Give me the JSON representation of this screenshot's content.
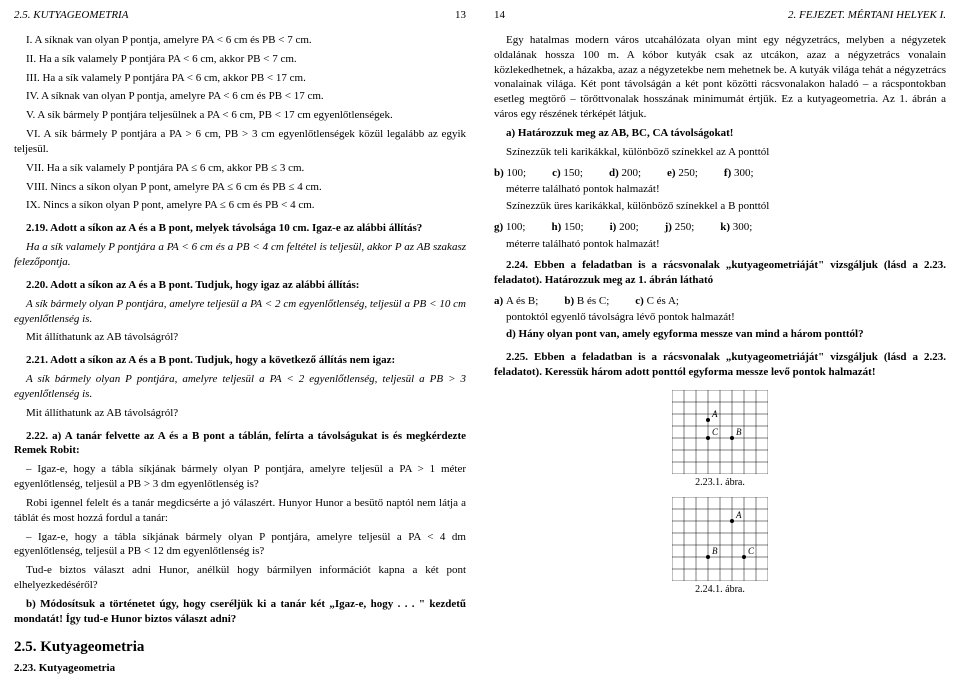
{
  "left": {
    "header": {
      "section": "2.5. KUTYAGEOMETRIA",
      "page": "13"
    },
    "p_intro_items": [
      "I. A síknak van olyan P pontja, amelyre PA < 6 cm és PB < 7 cm.",
      "II. Ha a sík valamely P pontjára PA < 6 cm, akkor PB < 7 cm.",
      "III. Ha a sík valamely P pontjára PA < 6 cm, akkor PB < 17 cm.",
      "IV. A síknak van olyan P pontja, amelyre PA < 6 cm és PB < 17 cm.",
      "V. A sík bármely P pontjára teljesülnek a PA < 6 cm, PB < 17 cm egyenlőtlenségek.",
      "VI. A sík bármely P pontjára a PA > 6 cm, PB > 3 cm egyenlőtlenségek közül legalább az egyik teljesül.",
      "VII. Ha a sík valamely P pontjára PA ≤ 6 cm, akkor PB ≤ 3 cm.",
      "VIII. Nincs a síkon olyan P pont, amelyre PA ≤ 6 cm és PB ≤ 4 cm.",
      "IX. Nincs a síkon olyan P pont, amelyre PA ≤ 6 cm és PB < 4 cm."
    ],
    "ex219_a": "2.19.  Adott a síkon az A és a B pont, melyek távolsága 10 cm. Igaz-e az alábbi állítás?",
    "ex219_b": "Ha a sík valamely P pontjára a PA < 6 cm és a PB < 4 cm feltétel is teljesül, akkor P az AB szakasz felezőpontja.",
    "ex220_a": "2.20.  Adott a síkon az A és a B pont. Tudjuk, hogy igaz az alábbi állítás:",
    "ex220_b": "A sík bármely olyan P pontjára, amelyre teljesül a PA < 2 cm egyenlőtlenség, teljesül a PB < 10 cm egyenlőtlenség is.",
    "ex220_c": "Mit állíthatunk az AB távolságról?",
    "ex221_a": "2.21.  Adott a síkon az A és a B pont. Tudjuk, hogy a következő állítás nem igaz:",
    "ex221_b": "A sík bármely olyan P pontjára, amelyre teljesül a PA < 2 egyenlőtlenség, teljesül a PB > 3 egyenlőtlenség is.",
    "ex221_c": "Mit állíthatunk az AB távolságról?",
    "ex222_lead": "2.22. a) A tanár felvette az A és a B pont a táblán, felírta a távolságukat is és megkérdezte Remek Robit:",
    "ex222_q1": "– Igaz-e, hogy a tábla síkjának bármely olyan P pontjára, amelyre teljesül a PA > 1 méter egyenlőtlenség, teljesül a PB > 3 dm egyenlőtlenség is?",
    "ex222_mid": "Robi igennel felelt és a tanár megdicsérte a jó válaszért. Hunyor Hunor a besütő naptól nem látja a táblát és most hozzá fordul a tanár:",
    "ex222_q2": "– Igaz-e, hogy a tábla síkjának bármely olyan P pontjára, amelyre teljesül a PA < 4 dm egyenlőtlenség, teljesül a PB < 12 dm egyenlőtlenség is?",
    "ex222_end": "Tud-e biztos választ adni Hunor, anélkül hogy bármilyen információt kapna a két pont elhelyezkedéséről?",
    "ex222_b": "b) Módosítsuk a történetet úgy, hogy cseréljük ki a tanár két „Igaz-e, hogy . . . \" kezdetű mondatát! Így tud-e Hunor biztos választ adni?",
    "section_title": "2.5. Kutyageometria",
    "ex223_label": "2.23.  Kutyageometria"
  },
  "right": {
    "header": {
      "page": "14",
      "section": "2. FEJEZET. MÉRTANI HELYEK I."
    },
    "p1": "Egy hatalmas modern város utcahálózata olyan mint egy négyzetrács, melyben a négyzetek oldalának hossza 100 m. A kóbor kutyák csak az utcákon, azaz a négyzetrács vonalain közlekedhetnek, a házakba, azaz a négyzetekbe nem mehetnek be. A kutyák világa tehát a négyzetrács vonalainak világa. Két pont távolságán a két pont közötti rácsvonalakon haladó – a rácspontokban esetleg megtörő – törőttvonalak hosszának minimumát értjük. Ez a kutyageometria. Az 1. ábrán a város egy részének térképét látjuk.",
    "a_label": "a) Határozzuk meg az AB, BC, CA távolságokat!",
    "p2": "Színezzük teli karikákkal, különböző színekkel az A ponttól",
    "opts_b": [
      {
        "k": "b)",
        "v": "100;"
      },
      {
        "k": "c)",
        "v": "150;"
      },
      {
        "k": "d)",
        "v": "200;"
      },
      {
        "k": "e)",
        "v": "250;"
      },
      {
        "k": "f)",
        "v": "300;"
      }
    ],
    "p3": "méterre található pontok halmazát!",
    "p4": "Színezzük üres karikákkal, különböző színekkel a B ponttól",
    "opts_g": [
      {
        "k": "g)",
        "v": "100;"
      },
      {
        "k": "h)",
        "v": "150;"
      },
      {
        "k": "i)",
        "v": "200;"
      },
      {
        "k": "j)",
        "v": "250;"
      },
      {
        "k": "k)",
        "v": "300;"
      }
    ],
    "p5": "méterre található pontok halmazát!",
    "ex224_lead": "2.24.  Ebben a feladatban is a rácsvonalak „kutyageometriáját\" vizsgáljuk (lásd a 2.23. feladatot).  Határozzuk meg az 1. ábrán látható",
    "ex224_opts": [
      {
        "k": "a)",
        "v": "A és B;"
      },
      {
        "k": "b)",
        "v": "B és C;"
      },
      {
        "k": "c)",
        "v": "C és A;"
      }
    ],
    "ex224_q": "pontoktól egyenlő távolságra lévő pontok halmazát!",
    "ex224_d": "d) Hány olyan pont van, amely egyforma messze van mind a három ponttól?",
    "ex225": "2.25.  Ebben a feladatban is a rácsvonalak „kutyageometriáját\" vizsgáljuk (lásd a 2.23. feladatot). Keressük három adott ponttól egyforma messze levő pontok halmazát!",
    "fig1": {
      "caption": "2.23.1. ábra.",
      "grid": {
        "cols": 8,
        "rows": 7,
        "cell": 12
      },
      "points": [
        {
          "label": "A",
          "col": 3,
          "row": 2.5
        },
        {
          "label": "C",
          "col": 3,
          "row": 4
        },
        {
          "label": "B",
          "col": 5,
          "row": 4
        }
      ]
    },
    "fig2": {
      "caption": "2.24.1. ábra.",
      "grid": {
        "cols": 8,
        "rows": 7,
        "cell": 12
      },
      "points": [
        {
          "label": "A",
          "col": 5,
          "row": 2
        },
        {
          "label": "B",
          "col": 3,
          "row": 5
        },
        {
          "label": "C",
          "col": 6,
          "row": 5
        }
      ]
    }
  },
  "colors": {
    "text": "#000000",
    "bg": "#ffffff",
    "grid": "#000000"
  }
}
